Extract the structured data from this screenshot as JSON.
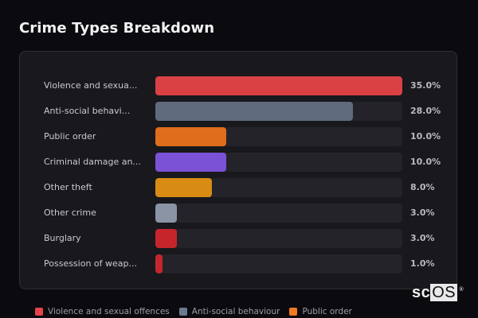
{
  "header": {
    "title": "Crime Types Breakdown"
  },
  "chart_data": {
    "type": "bar",
    "orientation": "horizontal",
    "title": "Crime Types Breakdown",
    "xlabel": "",
    "ylabel": "",
    "value_format": "percent",
    "xlim": [
      0,
      35
    ],
    "grid": false,
    "legend_position": "bottom",
    "categories": [
      "Violence and sexua...",
      "Anti-social behavi...",
      "Public order",
      "Criminal damage an...",
      "Other theft",
      "Other crime",
      "Burglary",
      "Possession of weap..."
    ],
    "full_categories": [
      "Violence and sexual offences",
      "Anti-social behaviour",
      "Public order"
    ],
    "values": [
      35.0,
      28.0,
      10.0,
      10.0,
      8.0,
      3.0,
      3.0,
      1.0
    ],
    "value_labels": [
      "35.0%",
      "28.0%",
      "10.0%",
      "10.0%",
      "8.0%",
      "3.0%",
      "3.0%",
      "1.0%"
    ],
    "colors": [
      "#d94144",
      "#5f6b7c",
      "#e06d1c",
      "#7b52d6",
      "#d88c14",
      "#8a94a4",
      "#c6262b",
      "#c6262b"
    ],
    "legend": [
      {
        "label": "Violence and sexual offences",
        "color": "#e5424a"
      },
      {
        "label": "Anti-social behaviour",
        "color": "#6b7a90"
      },
      {
        "label": "Public order",
        "color": "#f07a20"
      }
    ]
  },
  "rows": [
    {
      "label": "Violence and sexua...",
      "value": "35.0%",
      "pct": 35.0,
      "color": "#d94144"
    },
    {
      "label": "Anti-social behavi...",
      "value": "28.0%",
      "pct": 28.0,
      "color": "#5f6b7c"
    },
    {
      "label": "Public order",
      "value": "10.0%",
      "pct": 10.0,
      "color": "#e06d1c"
    },
    {
      "label": "Criminal damage an...",
      "value": "10.0%",
      "pct": 10.0,
      "color": "#7b52d6"
    },
    {
      "label": "Other theft",
      "value": "8.0%",
      "pct": 8.0,
      "color": "#d88c14"
    },
    {
      "label": "Other crime",
      "value": "3.0%",
      "pct": 3.0,
      "color": "#8a94a4"
    },
    {
      "label": "Burglary",
      "value": "3.0%",
      "pct": 3.0,
      "color": "#c6262b"
    },
    {
      "label": "Possession of weap...",
      "value": "1.0%",
      "pct": 1.0,
      "color": "#c6262b"
    }
  ],
  "legend": [
    {
      "label": "Violence and sexual offences",
      "color": "#e5424a"
    },
    {
      "label": "Anti-social behaviour",
      "color": "#6b7a90"
    },
    {
      "label": "Public order",
      "color": "#f07a20"
    }
  ],
  "watermark": {
    "prefix": "sc",
    "highlight": "OS",
    "mark": "®"
  }
}
